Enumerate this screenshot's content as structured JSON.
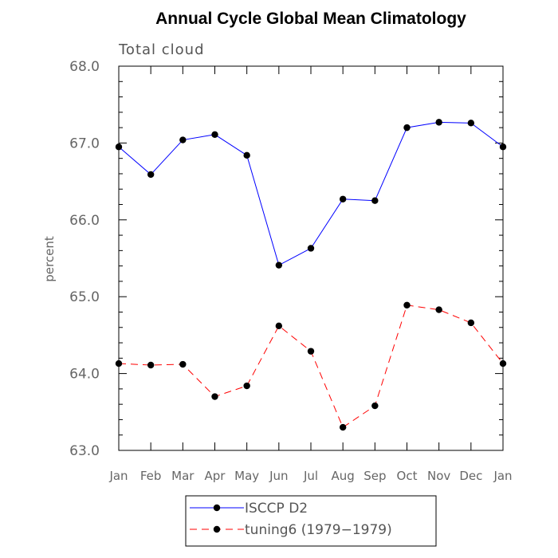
{
  "chart_data": {
    "type": "line",
    "title": "Annual Cycle Global Mean Climatology",
    "subtitle": "Total cloud",
    "xlabel": "",
    "ylabel": "percent",
    "categories": [
      "Jan",
      "Feb",
      "Mar",
      "Apr",
      "May",
      "Jun",
      "Jul",
      "Aug",
      "Sep",
      "Oct",
      "Nov",
      "Dec",
      "Jan"
    ],
    "yticks": [
      "63.0",
      "64.0",
      "65.0",
      "66.0",
      "67.0",
      "68.0"
    ],
    "ylim": [
      63.0,
      68.0
    ],
    "series": [
      {
        "name": "ISCCP D2",
        "color": "#0000ff",
        "dash": "solid",
        "values": [
          66.95,
          66.59,
          67.04,
          67.11,
          66.84,
          65.41,
          65.63,
          66.27,
          66.25,
          67.2,
          67.27,
          67.26,
          66.95
        ]
      },
      {
        "name": "tuning6 (1979−1979)",
        "color": "#ff0000",
        "dash": "dashed",
        "values": [
          64.13,
          64.11,
          64.12,
          63.7,
          63.84,
          64.62,
          64.29,
          63.3,
          63.58,
          64.89,
          64.83,
          64.66,
          64.13
        ]
      }
    ],
    "legend_position": "bottom-center"
  }
}
